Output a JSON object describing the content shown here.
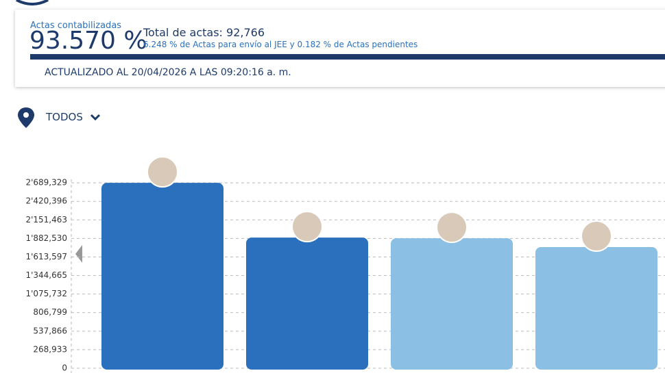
{
  "header": {
    "label": "Actas contabilizadas",
    "percent": "93.570 %",
    "total": "Total de actas: 92,766",
    "detail": "6.248 % de Actas para envío al JEE y 0.182 % de Actas pendientes",
    "updated": "ACTUALIZADO AL 20/04/2026 A LAS 09:20:16 a. m.",
    "filter": "TODOS"
  },
  "chart_data": {
    "type": "bar",
    "categories": [
      null,
      null,
      null,
      null
    ],
    "values": [
      2689329,
      1895000,
      1885000,
      1757000
    ],
    "colors": [
      "#2a70bd",
      "#2a70bd",
      "#8bbfe4",
      "#8bbfe4"
    ],
    "ylim": [
      0,
      2740000
    ],
    "yticks": [
      0,
      {
        "value": 268933,
        "label": "268,933"
      },
      {
        "value": 537866,
        "label": "537,866"
      },
      {
        "value": 806799,
        "label": "806,799"
      },
      {
        "value": 1075732,
        "label": "1'075,732"
      },
      {
        "value": 1344665,
        "label": "1'344,665"
      },
      {
        "value": 1613597,
        "label": "1'613,597"
      },
      {
        "value": 1882530,
        "label": "1'882,530"
      },
      {
        "value": 2151463,
        "label": "2'151,463"
      },
      {
        "value": 2420396,
        "label": "2'420,396"
      },
      {
        "value": 2689329,
        "label": "2'689,329"
      }
    ],
    "grid": true
  }
}
